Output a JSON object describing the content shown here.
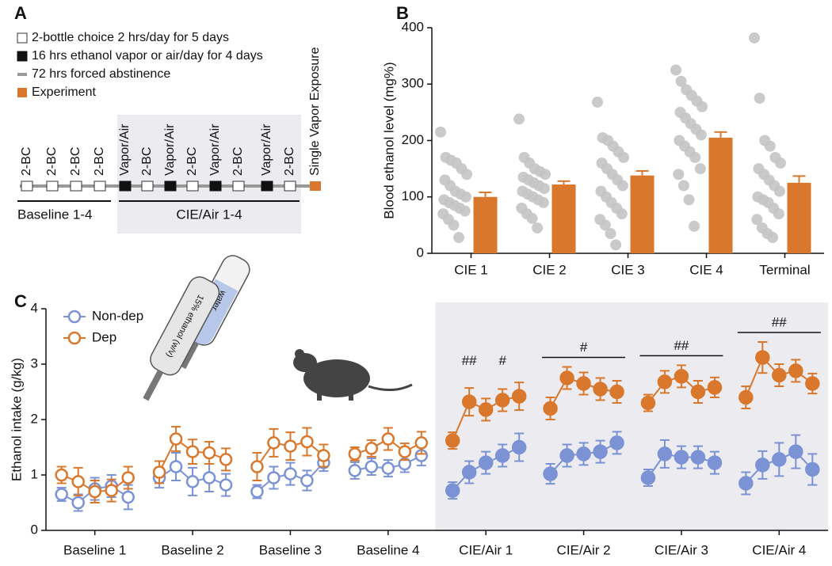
{
  "panel_labels": [
    "A",
    "B",
    "C"
  ],
  "panel_a": {
    "legend": [
      "2-bottle choice 2 hrs/day for 5 days",
      "16 hrs ethanol vapor or air/day for 4 days",
      "72 hrs forced abstinence",
      "Experiment"
    ],
    "sessions": [
      "2-BC",
      "2-BC",
      "2-BC",
      "2-BC",
      "Vapor/Air",
      "2-BC",
      "Vapor/Air",
      "2-BC",
      "Vapor/Air",
      "2-BC",
      "Vapor/Air",
      "2-BC"
    ],
    "final": "Single Vapor Exposure",
    "phases": [
      "Baseline 1-4",
      "CIE/Air 1-4"
    ]
  },
  "illustration": {
    "bottle_left": "15% ethanol (w/v)",
    "bottle_right": "water"
  },
  "chart_data": [
    {
      "type": "bar",
      "ylabel": "Blood ethanol level (mg%)",
      "categories": [
        "CIE 1",
        "CIE 2",
        "CIE 3",
        "CIE 4",
        "Terminal"
      ],
      "values": [
        100,
        122,
        138,
        205,
        125
      ],
      "errors": [
        8,
        6,
        8,
        10,
        12
      ],
      "color": "#d9782d",
      "points_color": "#c4c4c4",
      "points": [
        [
          215,
          170,
          165,
          160,
          150,
          140,
          130,
          120,
          110,
          105,
          100,
          95,
          90,
          85,
          80,
          75,
          70,
          60,
          50,
          28
        ],
        [
          238,
          170,
          160,
          150,
          145,
          140,
          135,
          130,
          125,
          120,
          115,
          110,
          105,
          100,
          95,
          90,
          80,
          70,
          62,
          45
        ],
        [
          268,
          205,
          200,
          190,
          180,
          170,
          160,
          150,
          140,
          130,
          120,
          110,
          100,
          90,
          80,
          70,
          60,
          50,
          35,
          15
        ],
        [
          325,
          305,
          290,
          280,
          270,
          260,
          250,
          240,
          230,
          220,
          210,
          200,
          190,
          180,
          170,
          150,
          140,
          120,
          95,
          48
        ],
        [
          382,
          275,
          200,
          190,
          170,
          160,
          150,
          140,
          130,
          120,
          110,
          100,
          95,
          90,
          80,
          70,
          60,
          45,
          35,
          28
        ]
      ],
      "ylim": [
        0,
        400
      ],
      "yticks": [
        0,
        100,
        200,
        300,
        400
      ]
    },
    {
      "type": "line",
      "ylabel": "Ethanol intake (g/kg)",
      "categories": [
        "Baseline 1",
        "Baseline 2",
        "Baseline 3",
        "Baseline 4",
        "CIE/Air 1",
        "CIE/Air 2",
        "CIE/Air 3",
        "CIE/Air 4"
      ],
      "marker_style": [
        "open",
        "open",
        "open",
        "open",
        "filled",
        "filled",
        "filled",
        "filled"
      ],
      "series": [
        {
          "name": "Non-dep",
          "color": "#7b92d4",
          "values": [
            [
              0.65,
              0.5,
              0.75,
              0.8,
              0.6
            ],
            [
              0.95,
              1.15,
              0.88,
              0.95,
              0.82
            ],
            [
              0.7,
              0.95,
              1.02,
              0.9,
              1.22
            ],
            [
              1.08,
              1.15,
              1.12,
              1.2,
              1.35
            ],
            [
              0.72,
              1.05,
              1.22,
              1.35,
              1.5
            ],
            [
              1.02,
              1.35,
              1.38,
              1.42,
              1.58
            ],
            [
              0.95,
              1.38,
              1.32,
              1.32,
              1.22
            ],
            [
              0.85,
              1.18,
              1.28,
              1.42,
              1.1
            ]
          ],
          "errors": [
            [
              0.12,
              0.15,
              0.2,
              0.2,
              0.22
            ],
            [
              0.18,
              0.25,
              0.25,
              0.25,
              0.2
            ],
            [
              0.12,
              0.2,
              0.2,
              0.18,
              0.15
            ],
            [
              0.15,
              0.15,
              0.15,
              0.15,
              0.18
            ],
            [
              0.15,
              0.2,
              0.2,
              0.2,
              0.25
            ],
            [
              0.18,
              0.2,
              0.2,
              0.2,
              0.2
            ],
            [
              0.15,
              0.25,
              0.2,
              0.2,
              0.2
            ],
            [
              0.2,
              0.25,
              0.3,
              0.3,
              0.28
            ]
          ]
        },
        {
          "name": "Dep",
          "color": "#d9782d",
          "values": [
            [
              1.0,
              0.88,
              0.7,
              0.72,
              0.95
            ],
            [
              1.05,
              1.65,
              1.42,
              1.4,
              1.28
            ],
            [
              1.15,
              1.58,
              1.52,
              1.6,
              1.35
            ],
            [
              1.38,
              1.48,
              1.65,
              1.42,
              1.58
            ],
            [
              1.62,
              2.32,
              2.18,
              2.35,
              2.42
            ],
            [
              2.2,
              2.75,
              2.65,
              2.55,
              2.5
            ],
            [
              2.3,
              2.68,
              2.78,
              2.5,
              2.58
            ],
            [
              2.4,
              3.12,
              2.8,
              2.88,
              2.65
            ]
          ],
          "errors": [
            [
              0.15,
              0.25,
              0.2,
              0.2,
              0.2
            ],
            [
              0.2,
              0.22,
              0.22,
              0.2,
              0.2
            ],
            [
              0.25,
              0.25,
              0.25,
              0.25,
              0.2
            ],
            [
              0.12,
              0.15,
              0.2,
              0.15,
              0.2
            ],
            [
              0.15,
              0.25,
              0.2,
              0.2,
              0.25
            ],
            [
              0.2,
              0.2,
              0.2,
              0.2,
              0.2
            ],
            [
              0.15,
              0.2,
              0.2,
              0.2,
              0.18
            ],
            [
              0.2,
              0.28,
              0.2,
              0.2,
              0.18
            ]
          ]
        }
      ],
      "annotations": [
        {
          "text": "##",
          "category": 4,
          "day": 1
        },
        {
          "text": "#",
          "category": 4,
          "day": 3
        },
        {
          "text": "#",
          "category": 5
        },
        {
          "text": "##",
          "category": 6
        },
        {
          "text": "##",
          "category": 7
        }
      ],
      "ylim": [
        0,
        4
      ],
      "yticks": [
        0,
        1,
        2,
        3,
        4
      ],
      "legend": "upper left"
    }
  ]
}
